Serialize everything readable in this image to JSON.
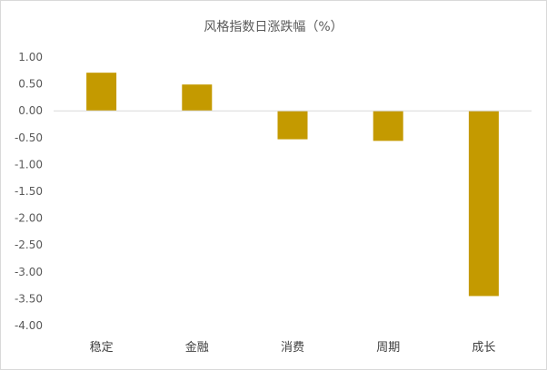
{
  "chart_data": {
    "type": "bar",
    "title": "风格指数日涨跌幅（%）",
    "categories": [
      "稳定",
      "金融",
      "消费",
      "周期",
      "成长"
    ],
    "values": [
      0.71,
      0.49,
      -0.53,
      -0.56,
      -3.45
    ],
    "ylim": [
      -4.0,
      1.0
    ],
    "yticks": [
      "1.00",
      "0.50",
      "0.00",
      "-0.50",
      "-1.00",
      "-1.50",
      "-2.00",
      "-2.50",
      "-3.00",
      "-3.50",
      "-4.00"
    ],
    "grid": false,
    "legend": "none",
    "bar_color": "#C49A00",
    "axis_color": "#d9d9d9"
  }
}
